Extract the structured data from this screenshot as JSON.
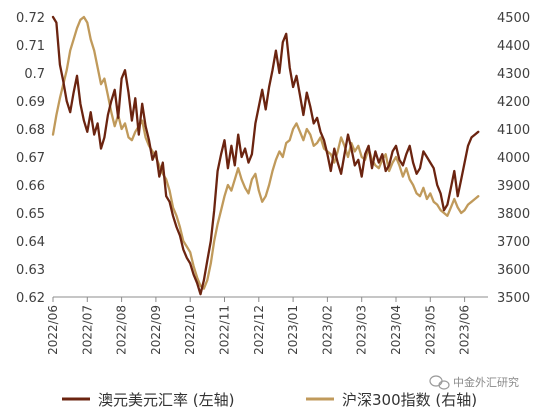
{
  "chart_data": {
    "type": "line",
    "colors": {
      "aud": "#6b2410",
      "csi": "#c09a5b",
      "axis": "#8c8c8c",
      "text": "#404040"
    },
    "x_labels": [
      "2022/06",
      "2022/07",
      "2022/08",
      "2022/09",
      "2022/10",
      "2022/11",
      "2022/12",
      "2023/01",
      "2023/02",
      "2023/03",
      "2023/04",
      "2023/05",
      "2023/06"
    ],
    "y_left": {
      "min": 0.62,
      "max": 0.72,
      "ticks": [
        0.62,
        0.63,
        0.64,
        0.65,
        0.66,
        0.67,
        0.68,
        0.69,
        0.7,
        0.71,
        0.72
      ],
      "tick_labels": [
        "0.62",
        "0.63",
        "0.64",
        "0.65",
        "0.66",
        "0.67",
        "0.68",
        "0.69",
        "0.7",
        "0.71",
        "0.72"
      ]
    },
    "y_right": {
      "min": 3500,
      "max": 4500,
      "ticks": [
        3500,
        3600,
        3700,
        3800,
        3900,
        4000,
        4100,
        4200,
        4300,
        4400,
        4500
      ],
      "tick_labels": [
        "3500",
        "3600",
        "3700",
        "3800",
        "3900",
        "4000",
        "4100",
        "4200",
        "4300",
        "4400",
        "4500"
      ]
    },
    "series": [
      {
        "name": "澳元美元汇率 (左轴)",
        "axis": "left",
        "x": [
          0,
          0.1,
          0.2,
          0.3,
          0.4,
          0.5,
          0.6,
          0.7,
          0.8,
          0.9,
          1,
          1.1,
          1.2,
          1.3,
          1.4,
          1.5,
          1.6,
          1.7,
          1.8,
          1.9,
          2,
          2.1,
          2.2,
          2.3,
          2.4,
          2.5,
          2.6,
          2.7,
          2.8,
          2.9,
          3,
          3.1,
          3.2,
          3.3,
          3.4,
          3.5,
          3.6,
          3.7,
          3.8,
          3.9,
          4,
          4.1,
          4.2,
          4.3,
          4.4,
          4.5,
          4.6,
          4.7,
          4.8,
          4.9,
          5,
          5.1,
          5.2,
          5.3,
          5.4,
          5.5,
          5.6,
          5.7,
          5.8,
          5.9,
          6,
          6.1,
          6.2,
          6.3,
          6.4,
          6.5,
          6.6,
          6.7,
          6.8,
          6.9,
          7,
          7.1,
          7.2,
          7.3,
          7.4,
          7.5,
          7.6,
          7.7,
          7.8,
          7.9,
          8,
          8.1,
          8.2,
          8.3,
          8.4,
          8.5,
          8.6,
          8.7,
          8.8,
          8.9,
          9,
          9.1,
          9.2,
          9.3,
          9.4,
          9.5,
          9.6,
          9.7,
          9.8,
          9.9,
          10,
          10.1,
          10.2,
          10.3,
          10.4,
          10.5,
          10.6,
          10.7,
          10.8,
          10.9,
          11,
          11.1,
          11.2,
          11.3,
          11.4,
          11.5,
          11.6,
          11.7,
          11.8,
          11.9,
          12,
          12.1,
          12.2,
          12.3,
          12.4
        ],
        "values": [
          0.72,
          0.718,
          0.703,
          0.697,
          0.69,
          0.686,
          0.693,
          0.699,
          0.689,
          0.683,
          0.679,
          0.686,
          0.678,
          0.682,
          0.673,
          0.677,
          0.685,
          0.69,
          0.694,
          0.684,
          0.698,
          0.701,
          0.693,
          0.683,
          0.691,
          0.678,
          0.689,
          0.681,
          0.676,
          0.669,
          0.672,
          0.663,
          0.668,
          0.656,
          0.654,
          0.649,
          0.645,
          0.642,
          0.637,
          0.634,
          0.632,
          0.628,
          0.625,
          0.621,
          0.626,
          0.633,
          0.64,
          0.651,
          0.665,
          0.671,
          0.676,
          0.666,
          0.674,
          0.667,
          0.678,
          0.67,
          0.673,
          0.668,
          0.671,
          0.682,
          0.688,
          0.694,
          0.687,
          0.695,
          0.701,
          0.708,
          0.7,
          0.711,
          0.714,
          0.702,
          0.695,
          0.699,
          0.692,
          0.685,
          0.693,
          0.688,
          0.682,
          0.684,
          0.679,
          0.676,
          0.671,
          0.665,
          0.673,
          0.668,
          0.664,
          0.671,
          0.678,
          0.673,
          0.667,
          0.669,
          0.663,
          0.671,
          0.674,
          0.666,
          0.672,
          0.668,
          0.671,
          0.665,
          0.667,
          0.672,
          0.674,
          0.669,
          0.667,
          0.671,
          0.674,
          0.668,
          0.664,
          0.666,
          0.672,
          0.67,
          0.668,
          0.666,
          0.66,
          0.657,
          0.651,
          0.653,
          0.659,
          0.665,
          0.656,
          0.662,
          0.668,
          0.674,
          0.677,
          0.678,
          0.679
        ]
      },
      {
        "name": "沪深300指数 (右轴)",
        "axis": "right",
        "x": [
          0,
          0.1,
          0.2,
          0.3,
          0.4,
          0.5,
          0.6,
          0.7,
          0.8,
          0.9,
          1,
          1.1,
          1.2,
          1.3,
          1.4,
          1.5,
          1.6,
          1.7,
          1.8,
          1.9,
          2,
          2.1,
          2.2,
          2.3,
          2.4,
          2.5,
          2.6,
          2.7,
          2.8,
          2.9,
          3,
          3.1,
          3.2,
          3.3,
          3.4,
          3.5,
          3.6,
          3.7,
          3.8,
          3.9,
          4,
          4.1,
          4.2,
          4.3,
          4.4,
          4.5,
          4.6,
          4.7,
          4.8,
          4.9,
          5,
          5.1,
          5.2,
          5.3,
          5.4,
          5.5,
          5.6,
          5.7,
          5.8,
          5.9,
          6,
          6.1,
          6.2,
          6.3,
          6.4,
          6.5,
          6.6,
          6.7,
          6.8,
          6.9,
          7,
          7.1,
          7.2,
          7.3,
          7.4,
          7.5,
          7.6,
          7.7,
          7.8,
          7.9,
          8,
          8.1,
          8.2,
          8.3,
          8.4,
          8.5,
          8.6,
          8.7,
          8.8,
          8.9,
          9,
          9.1,
          9.2,
          9.3,
          9.4,
          9.5,
          9.6,
          9.7,
          9.8,
          9.9,
          10,
          10.1,
          10.2,
          10.3,
          10.4,
          10.5,
          10.6,
          10.7,
          10.8,
          10.9,
          11,
          11.1,
          11.2,
          11.3,
          11.4,
          11.5,
          11.6,
          11.7,
          11.8,
          11.9,
          12,
          12.1,
          12.2,
          12.3,
          12.4
        ],
        "values": [
          4080,
          4150,
          4210,
          4260,
          4310,
          4380,
          4420,
          4460,
          4490,
          4500,
          4480,
          4420,
          4380,
          4320,
          4260,
          4280,
          4220,
          4160,
          4110,
          4150,
          4100,
          4120,
          4070,
          4060,
          4090,
          4110,
          4130,
          4070,
          4040,
          4020,
          4000,
          3970,
          3940,
          3920,
          3880,
          3820,
          3790,
          3750,
          3700,
          3680,
          3660,
          3610,
          3570,
          3540,
          3530,
          3560,
          3620,
          3700,
          3760,
          3810,
          3860,
          3900,
          3880,
          3920,
          3960,
          3920,
          3890,
          3870,
          3920,
          3940,
          3880,
          3840,
          3860,
          3900,
          3950,
          3990,
          4020,
          4000,
          4050,
          4060,
          4100,
          4120,
          4090,
          4060,
          4100,
          4080,
          4040,
          4050,
          4070,
          4030,
          4020,
          4010,
          3980,
          4020,
          4070,
          4040,
          4000,
          4050,
          4020,
          4040,
          4000,
          3990,
          4030,
          3990,
          3970,
          3960,
          3990,
          4010,
          3950,
          3980,
          4000,
          3970,
          3930,
          3960,
          3920,
          3900,
          3870,
          3860,
          3890,
          3850,
          3870,
          3840,
          3830,
          3810,
          3800,
          3790,
          3820,
          3850,
          3820,
          3800,
          3810,
          3830,
          3840,
          3850,
          3860
        ]
      }
    ]
  },
  "legend": [
    {
      "label": "澳元美元汇率 (左轴)",
      "color": "#6b2410"
    },
    {
      "label": "沪深300指数 (右轴)",
      "color": "#c09a5b"
    }
  ],
  "watermark": {
    "text": "中金外汇研究",
    "icon": "wechat-icon"
  }
}
